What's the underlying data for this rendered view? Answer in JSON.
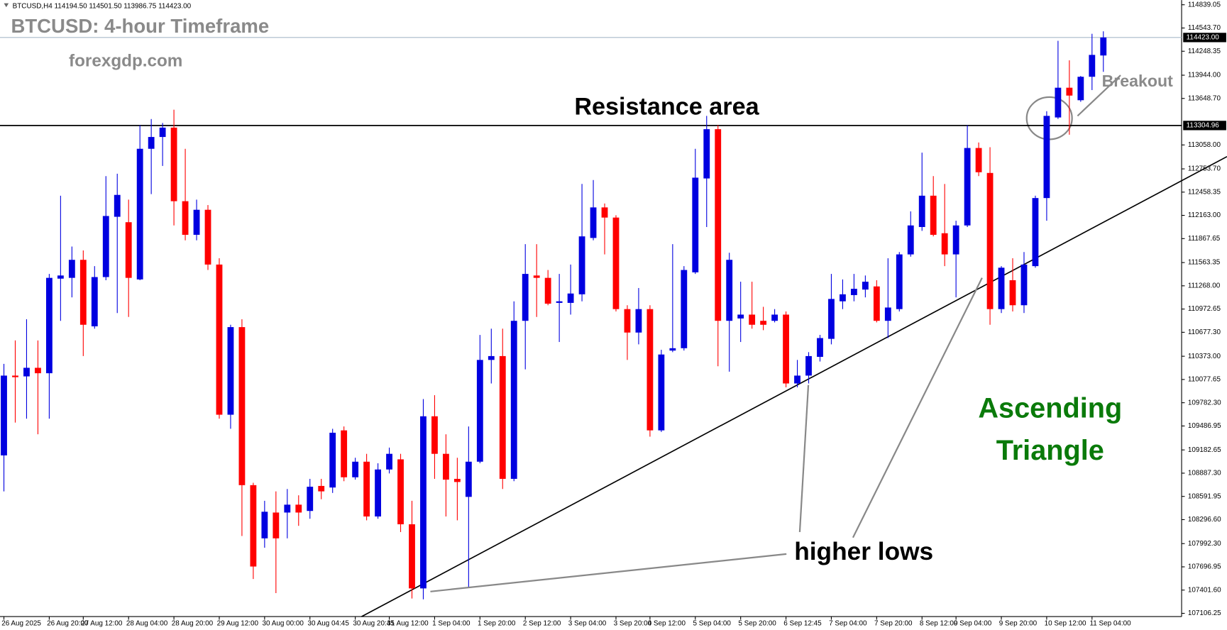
{
  "header": "BTCUSD,H4 114194.50 114501.50 113986.75 114423.00",
  "chart_data": {
    "type": "candlestick",
    "title": "BTCUSD: 4-hour Timeframe",
    "subtitle": "forexgdp.com",
    "annotations": {
      "resistance": "Resistance area",
      "breakout": "Breakout",
      "higher_lows": "higher lows",
      "pattern": [
        "Ascending",
        "Triangle"
      ]
    },
    "up_color": "#0000e0",
    "down_color": "#ff0000",
    "categories": [
      "26 Aug 2025",
      null,
      null,
      null,
      "26 Aug 20:00",
      null,
      null,
      "27 Aug 12:00",
      null,
      null,
      null,
      "28 Aug 04:00",
      null,
      null,
      null,
      "28 Aug 20:00",
      null,
      null,
      null,
      "29 Aug 12:00",
      null,
      null,
      null,
      "30 Aug 00:00",
      null,
      null,
      null,
      "30 Aug 04:45",
      null,
      null,
      null,
      "30 Aug 20:45",
      null,
      null,
      "31 Aug 12:00",
      null,
      null,
      null,
      "1 Sep 04:00",
      null,
      null,
      null,
      "1 Sep 20:00",
      null,
      null,
      null,
      "2 Sep 12:00",
      null,
      null,
      null,
      "3 Sep 04:00",
      null,
      null,
      null,
      "3 Sep 20:00",
      null,
      null,
      "4 Sep 12:00",
      null,
      null,
      null,
      "5 Sep 04:00",
      null,
      null,
      null,
      "5 Sep 20:00",
      null,
      null,
      null,
      "6 Sep 12:45",
      null,
      null,
      null,
      "7 Sep 04:00",
      null,
      null,
      null,
      "7 Sep 20:00",
      null,
      null,
      null,
      "8 Sep 12:00",
      null,
      null,
      "9 Sep 04:00",
      null,
      null,
      null,
      "9 Sep 20:00",
      null,
      null,
      null,
      "10 Sep 12:00",
      null,
      null,
      null,
      "11 Sep 04:00",
      null
    ],
    "open": [
      109113,
      110127,
      110117,
      110226,
      110157,
      111359,
      111369,
      111598,
      110753,
      111379,
      112145,
      112076,
      111349,
      113009,
      113159,
      113278,
      112343,
      111916,
      112234,
      111538,
      109630,
      110743,
      108735,
      108059,
      108387,
      108387,
      108487,
      108407,
      108725,
      108705,
      109431,
      108835,
      109033,
      108337,
      108934,
      109063,
      108238,
      107423,
      109610,
      109133,
      108815,
      108586,
      109033,
      110326,
      110375,
      108815,
      110823,
      111399,
      111369,
      111051,
      111051,
      111160,
      111876,
      112264,
      112135,
      110972,
      110674,
      110972,
      109431,
      110445,
      110475,
      111439,
      112632,
      113258,
      110823,
      110853,
      110902,
      110823,
      110823,
      110902,
      110027,
      110127,
      110365,
      110594,
      111071,
      111150,
      111220,
      111260,
      110823,
      110972,
      111667,
      112015,
      112413,
      111936,
      111667,
      112035,
      113019,
      112702,
      110972,
      111339,
      111021,
      111518,
      112383,
      113407,
      113785,
      113626,
      113924,
      114194.5
    ],
    "high": [
      110276,
      110574,
      110843,
      110574,
      111419,
      112413,
      111767,
      111717,
      111518,
      112662,
      112692,
      112363,
      113308,
      113387,
      113337,
      113506,
      113009,
      112363,
      112294,
      111618,
      110773,
      110843,
      108765,
      108536,
      108656,
      108686,
      108606,
      108815,
      108815,
      109451,
      109481,
      109083,
      109133,
      109013,
      109212,
      109133,
      108536,
      109829,
      109878,
      109381,
      109083,
      109481,
      110644,
      110723,
      110723,
      111071,
      111797,
      111797,
      111469,
      111419,
      111538,
      112562,
      112612,
      112314,
      112165,
      111021,
      111240,
      111021,
      110455,
      111797,
      111518,
      113009,
      113427,
      113308,
      111688,
      111320,
      111320,
      111001,
      110972,
      110942,
      110326,
      110425,
      110644,
      111419,
      111349,
      111419,
      111399,
      111339,
      111618,
      111697,
      112214,
      112960,
      112662,
      112562,
      112095,
      113308,
      113089,
      113029,
      111518,
      111618,
      111697,
      112413,
      113486,
      114381,
      114133,
      113934,
      114470,
      114501.5
    ],
    "low": [
      108656,
      109530,
      109580,
      109381,
      109580,
      110823,
      111121,
      110375,
      110723,
      111339,
      110922,
      110872,
      111339,
      112433,
      112791,
      112035,
      111846,
      111846,
      111469,
      109580,
      109451,
      108089,
      107542,
      107940,
      107363,
      108059,
      108218,
      108308,
      108556,
      108636,
      108785,
      108805,
      108288,
      108308,
      108884,
      108139,
      107294,
      107284,
      108815,
      108337,
      108288,
      107443,
      109013,
      110027,
      108686,
      108785,
      110206,
      110872,
      111021,
      110554,
      110902,
      111071,
      111846,
      111667,
      110942,
      110326,
      110524,
      109351,
      109411,
      110425,
      110445,
      111419,
      112015,
      110246,
      110177,
      110554,
      110723,
      110704,
      110803,
      109978,
      109978,
      110027,
      110306,
      110524,
      110972,
      111071,
      111121,
      110803,
      110604,
      110942,
      111638,
      111966,
      111896,
      111518,
      111121,
      112015,
      112662,
      110773,
      110922,
      110942,
      110922,
      111498,
      112095,
      113388,
      113188,
      113606,
      113755,
      113986.75
    ],
    "close": [
      110127,
      110107,
      110226,
      110157,
      111369,
      111399,
      111598,
      110773,
      111379,
      112155,
      112423,
      111369,
      113009,
      113159,
      113278,
      112343,
      111916,
      112234,
      111538,
      109630,
      110743,
      108735,
      107701,
      108397,
      108059,
      108487,
      108387,
      108715,
      108656,
      109401,
      108835,
      109033,
      108337,
      108934,
      109133,
      108238,
      107423,
      109610,
      109133,
      108805,
      108775,
      109033,
      110326,
      110375,
      108815,
      110823,
      111419,
      111369,
      111041,
      111071,
      111170,
      111896,
      112264,
      112135,
      110972,
      110674,
      110972,
      109431,
      110395,
      110475,
      111469,
      112642,
      113258,
      110823,
      111598,
      110902,
      110773,
      110773,
      110902,
      110027,
      110127,
      110375,
      110604,
      111101,
      111160,
      111230,
      111320,
      110823,
      110992,
      111667,
      112035,
      112413,
      111916,
      111667,
      112035,
      113019,
      112711,
      110972,
      111498,
      111021,
      111538,
      112383,
      113427,
      113785,
      113685,
      113924,
      114202,
      114423
    ],
    "ylim": [
      107065,
      114898
    ],
    "yticks": [
      114839.05,
      {
        "value": 114543.7,
        "label": "114543.70"
      },
      114248.35,
      {
        "value": 113944,
        "label": "113944.00"
      },
      {
        "value": 113648.7,
        "label": "113648.70"
      },
      {
        "value": 113058,
        "label": "113058.00"
      },
      {
        "value": 112753.7,
        "label": "112753.70"
      },
      112458.35,
      {
        "value": 112163,
        "label": "112163.00"
      },
      111867.65,
      111563.35,
      {
        "value": 111268,
        "label": "111268.00"
      },
      110972.65,
      {
        "value": 110677.3,
        "label": "110677.30"
      },
      {
        "value": 110373,
        "label": "110373.00"
      },
      110077.65,
      {
        "value": 109782.3,
        "label": "109782.30"
      },
      109486.95,
      109182.65,
      {
        "value": 108887.3,
        "label": "108887.30"
      },
      108591.95,
      {
        "value": 108296.6,
        "label": "108296.60"
      },
      {
        "value": 107992.3,
        "label": "107992.30"
      },
      107696.95,
      {
        "value": 107401.6,
        "label": "107401.60"
      },
      107106.25
    ],
    "price_lines": [
      {
        "value": 114423,
        "label": "114423.00",
        "color": "#a9b8c8"
      },
      {
        "value": 113304.96,
        "label": "113304.96",
        "color": "#000000"
      }
    ]
  }
}
